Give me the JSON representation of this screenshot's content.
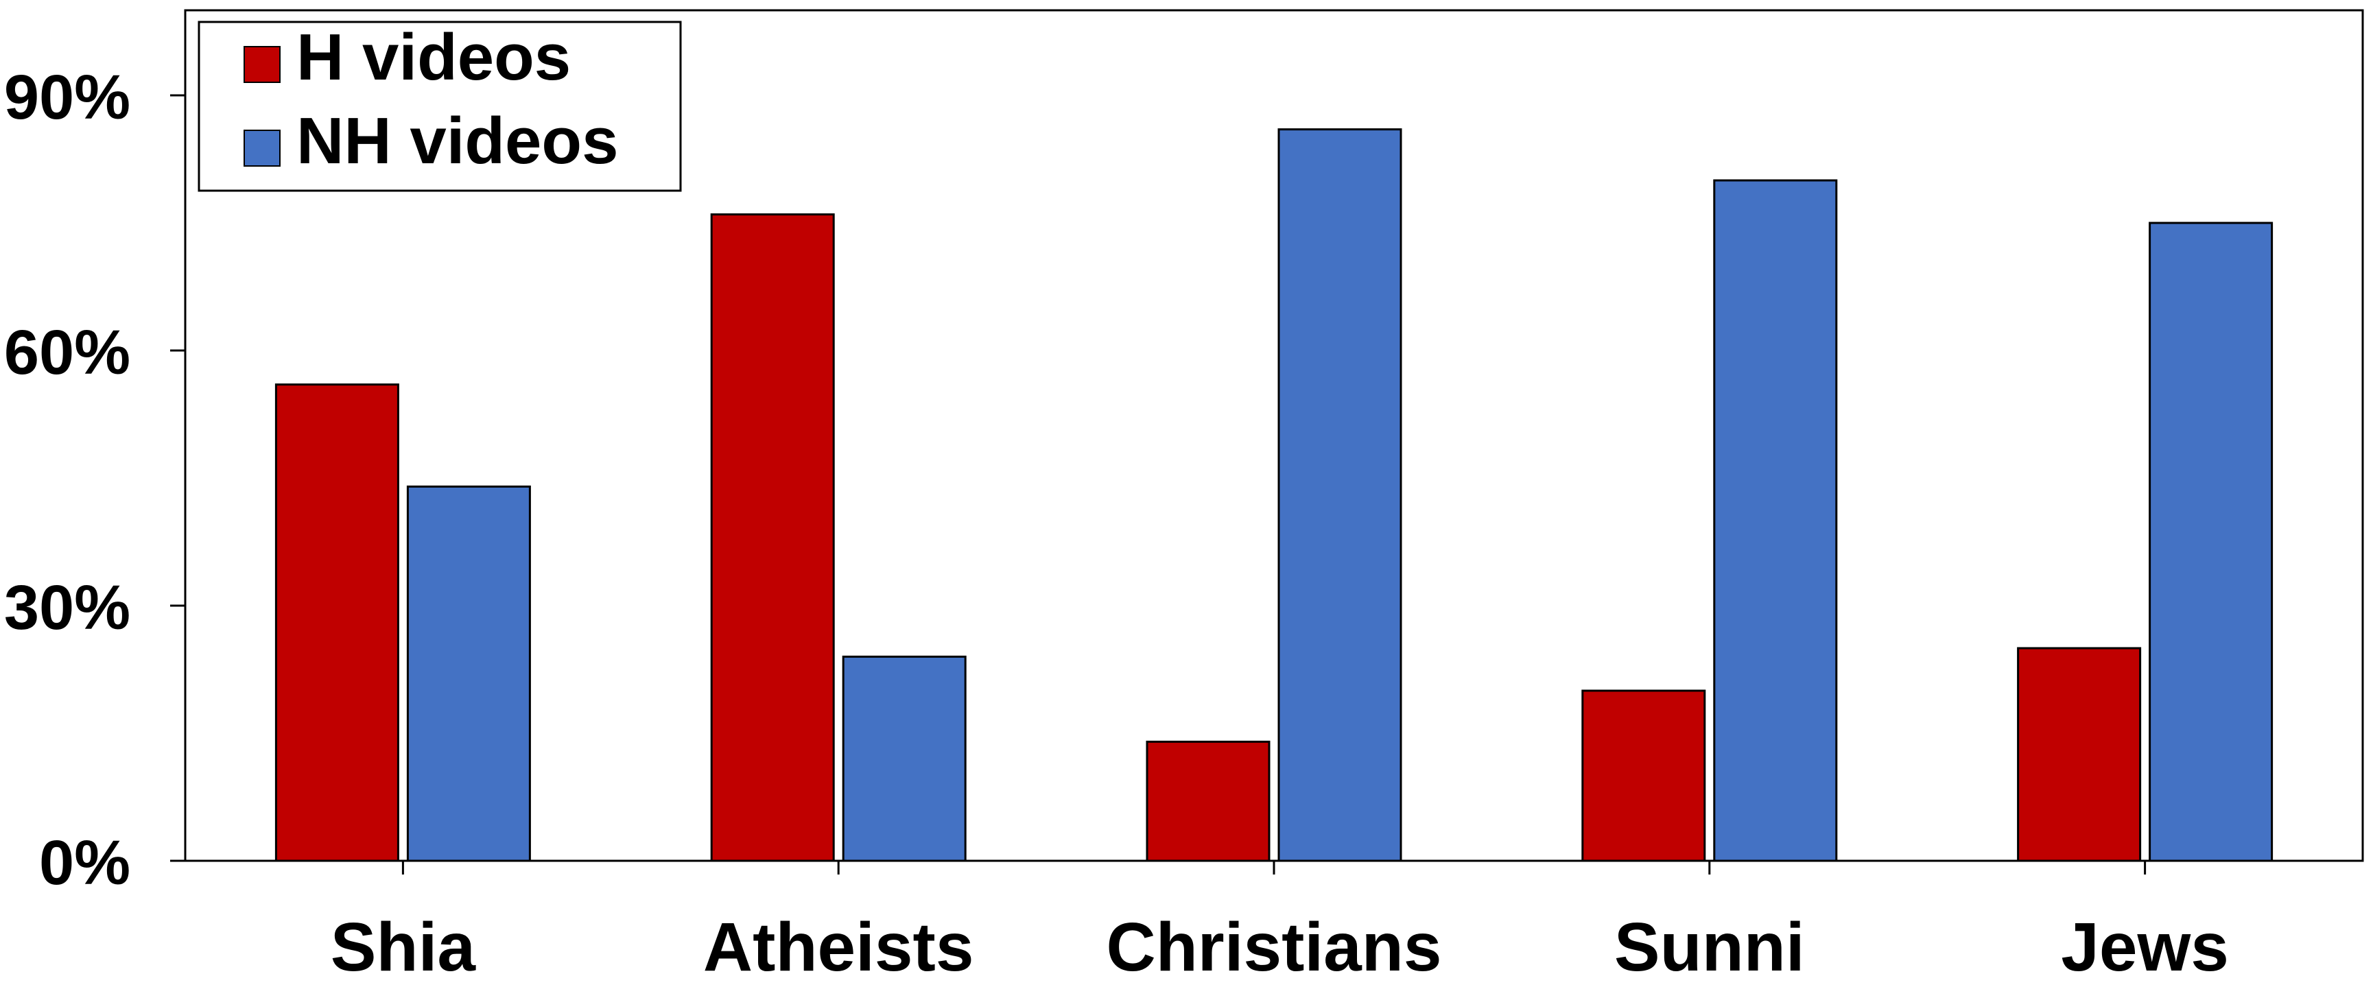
{
  "chart_data": {
    "type": "bar",
    "title": "",
    "xlabel": "",
    "ylabel": "",
    "categories": [
      "Shia",
      "Atheists",
      "Christians",
      "Sunni",
      "Jews"
    ],
    "series": [
      {
        "name": "H videos",
        "color": "#c00000",
        "values": [
          56,
          76,
          14,
          20,
          25
        ]
      },
      {
        "name": "NH videos",
        "color": "#4472c4",
        "values": [
          44,
          24,
          86,
          80,
          75
        ]
      }
    ],
    "ylim": [
      0,
      100
    ],
    "yticks": [
      0,
      30,
      60,
      90
    ],
    "ytick_labels": [
      "0%",
      "30%",
      "60%",
      "90%"
    ],
    "grid": false,
    "legend_position": "top-left"
  }
}
